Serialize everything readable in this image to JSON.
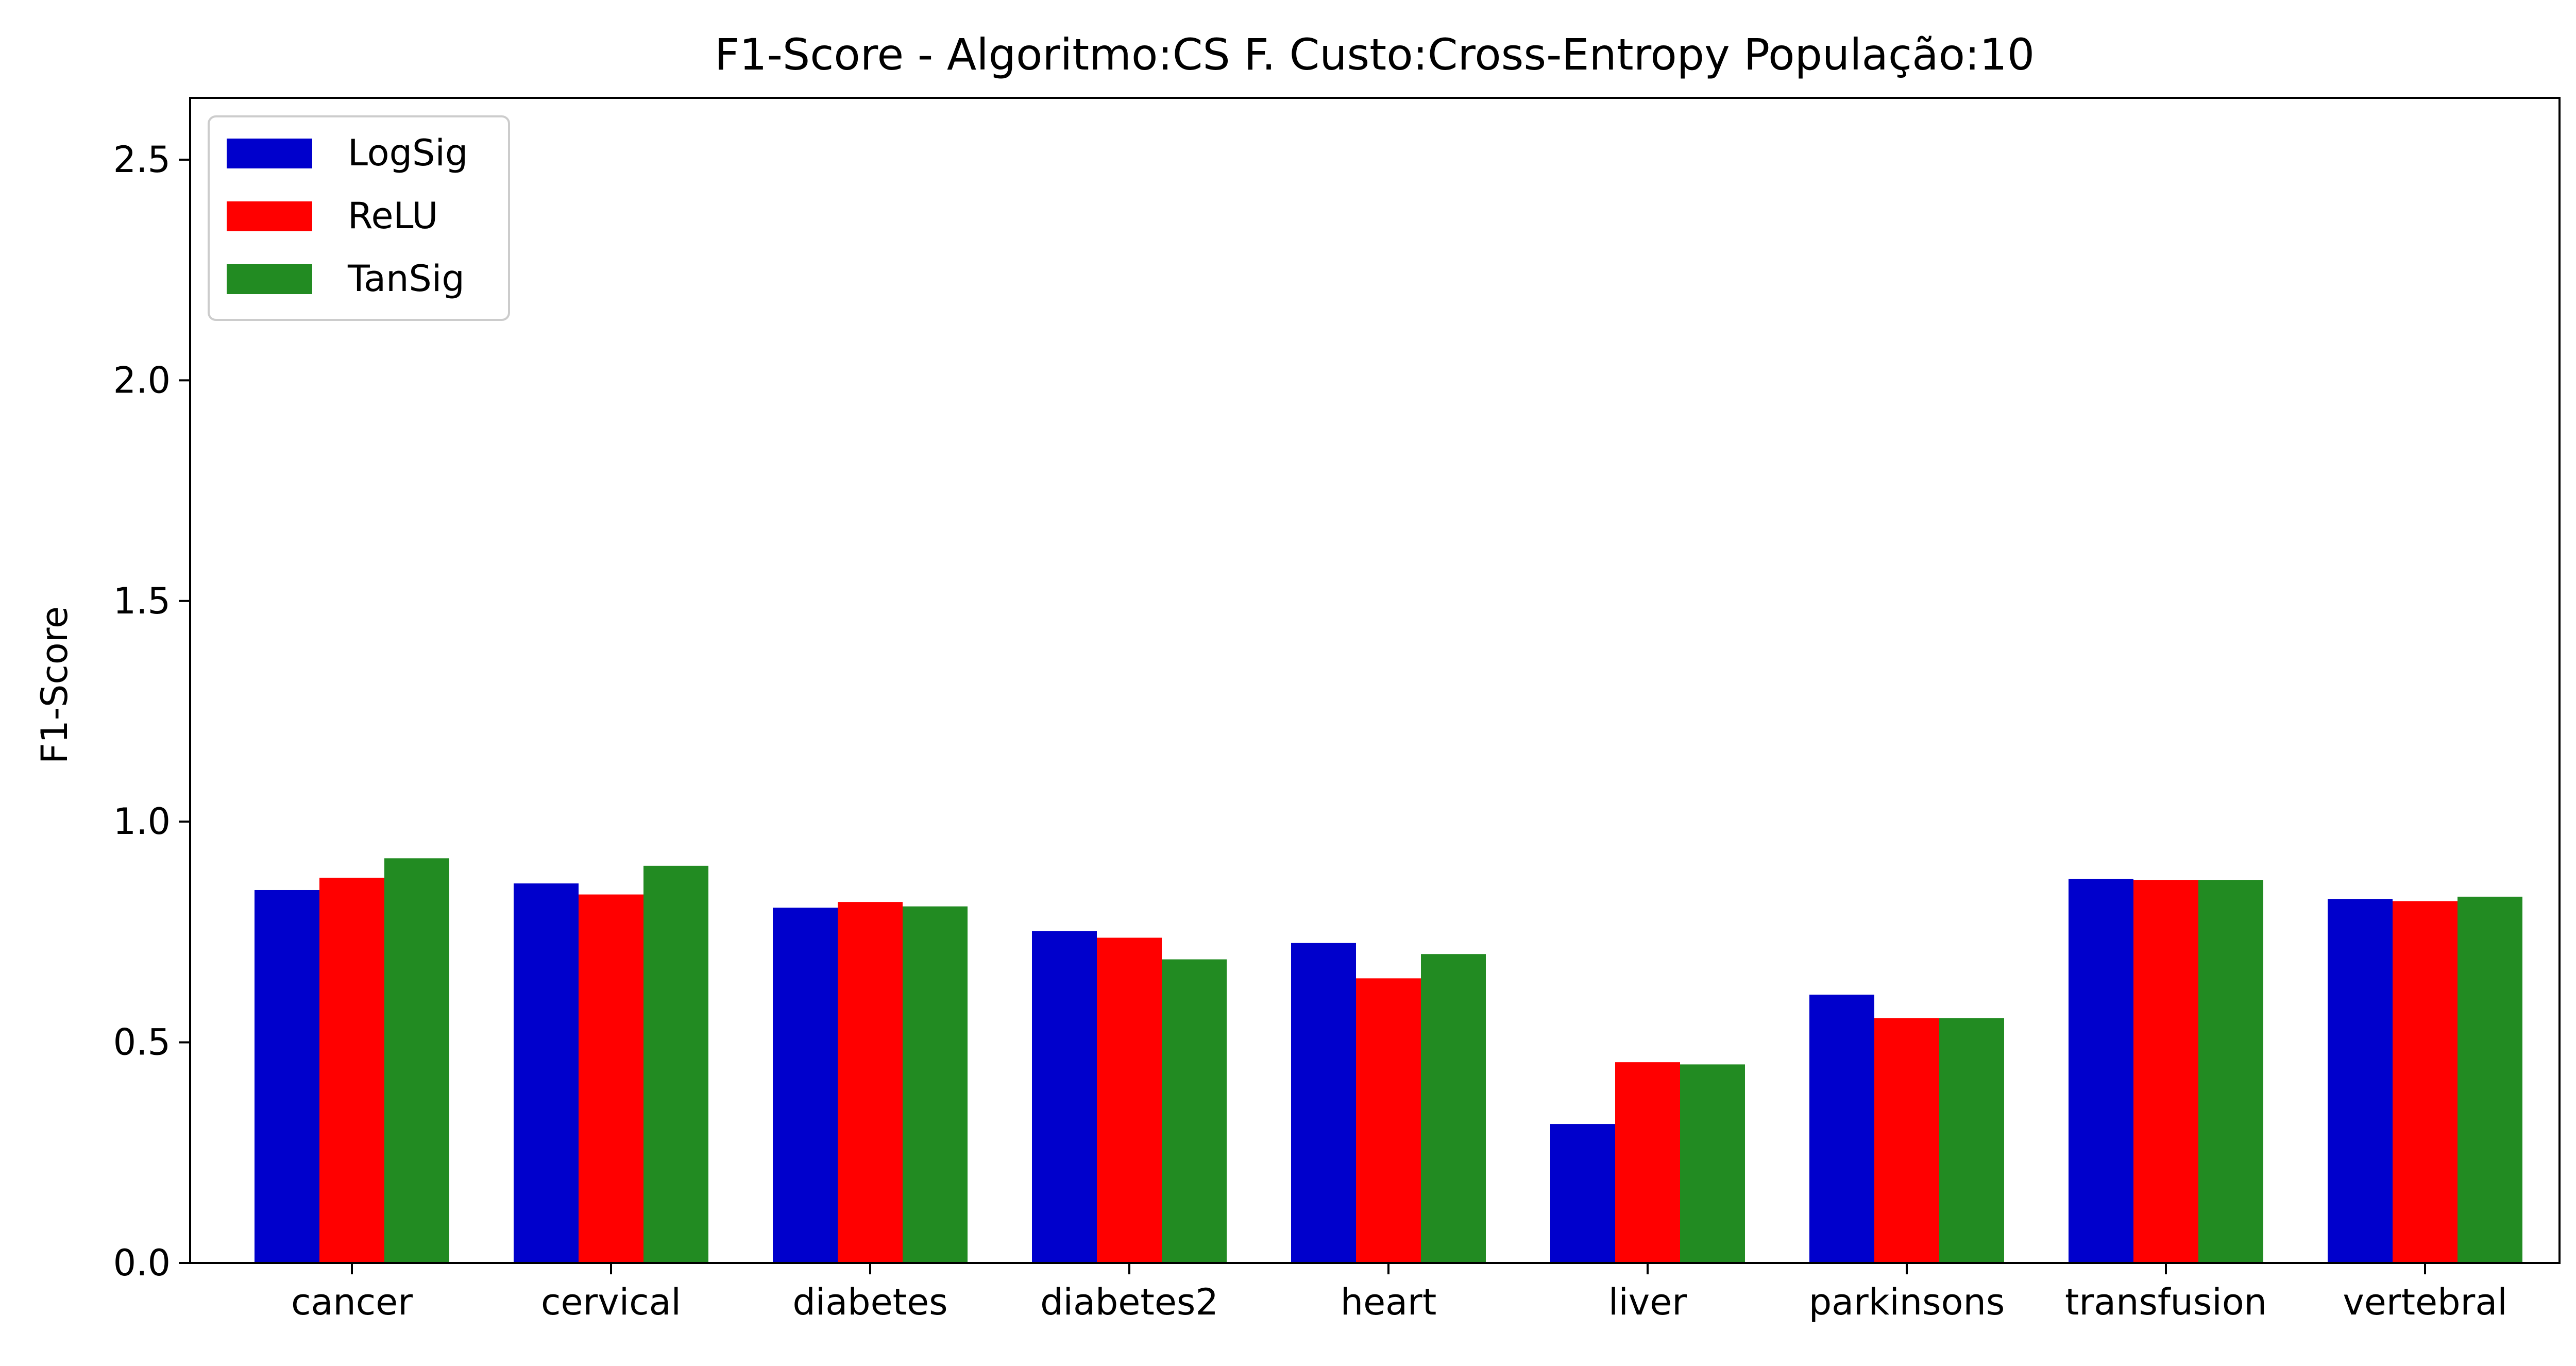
{
  "chart_data": {
    "type": "bar",
    "title": "F1-Score - Algoritmo:CS F. Custo:Cross-Entropy População:10",
    "xlabel": "",
    "ylabel": "F1-Score",
    "ylim": [
      0,
      2.64
    ],
    "yticks": [
      0.0,
      0.5,
      1.0,
      1.5,
      2.0,
      2.5
    ],
    "ytick_labels": [
      "0.0",
      "0.5",
      "1.0",
      "1.5",
      "2.0",
      "2.5"
    ],
    "grid": false,
    "legend_position": "top-left",
    "categories": [
      "cancer",
      "cervical",
      "diabetes",
      "diabetes2",
      "heart",
      "liver",
      "parkinsons",
      "transfusion",
      "vertebral"
    ],
    "series": [
      {
        "name": "LogSig",
        "color": "#0000cc",
        "values": [
          0.845,
          0.86,
          0.805,
          0.752,
          0.725,
          0.315,
          0.608,
          0.87,
          0.825
        ]
      },
      {
        "name": "ReLU",
        "color": "#ff0000",
        "values": [
          0.873,
          0.835,
          0.818,
          0.737,
          0.645,
          0.455,
          0.555,
          0.868,
          0.82
        ]
      },
      {
        "name": "TanSig",
        "color": "#228b22",
        "values": [
          0.917,
          0.9,
          0.808,
          0.688,
          0.7,
          0.45,
          0.555,
          0.868,
          0.83
        ]
      }
    ]
  }
}
